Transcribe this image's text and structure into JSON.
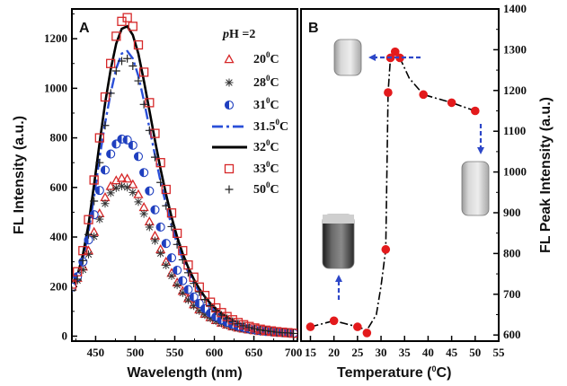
{
  "chart_data": [
    {
      "type": "scatter",
      "panel_label": "A",
      "xlabel": "Wavelength (nm)",
      "ylabel": "FL Intensity (a.u.)",
      "xlim": [
        420,
        705
      ],
      "ylim": [
        -20,
        1320
      ],
      "xticks": [
        450,
        500,
        550,
        600,
        650,
        700
      ],
      "yticks": [
        0,
        200,
        400,
        600,
        800,
        1000,
        1200
      ],
      "legend_title": "pH =2",
      "legend_position": "top-right",
      "grid": false,
      "x": [
        420,
        427,
        434,
        441,
        448,
        455,
        462,
        469,
        476,
        483,
        490,
        497,
        504,
        511,
        518,
        525,
        532,
        539,
        546,
        553,
        560,
        567,
        574,
        581,
        588,
        595,
        602,
        609,
        616,
        623,
        630,
        637,
        644,
        651,
        658,
        665,
        672,
        679,
        686,
        693,
        700
      ],
      "series": [
        {
          "name": "20 °C",
          "marker": "triangle",
          "color": "#d62728",
          "values": [
            200,
            235,
            280,
            345,
            420,
            495,
            560,
            605,
            628,
            638,
            635,
            612,
            572,
            520,
            462,
            405,
            350,
            300,
            255,
            216,
            182,
            153,
            128,
            107,
            90,
            76,
            64,
            54,
            46,
            39,
            34,
            30,
            26,
            23,
            20,
            18,
            16,
            14,
            13,
            12,
            11
          ]
        },
        {
          "name": "28 °C",
          "marker": "asterisk",
          "color": "#333333",
          "values": [
            192,
            225,
            268,
            330,
            402,
            472,
            535,
            578,
            598,
            605,
            600,
            580,
            542,
            494,
            440,
            385,
            334,
            286,
            243,
            206,
            174,
            146,
            122,
            102,
            86,
            72,
            61,
            52,
            44,
            37,
            32,
            28,
            25,
            22,
            19,
            17,
            15,
            13,
            12,
            11,
            10
          ]
        },
        {
          "name": "31 °C",
          "marker": "half-circle",
          "color": "#1f3fbf",
          "values": [
            198,
            240,
            300,
            388,
            490,
            588,
            670,
            735,
            775,
            795,
            792,
            770,
            725,
            660,
            586,
            510,
            440,
            374,
            316,
            266,
            224,
            188,
            158,
            132,
            111,
            93,
            78,
            66,
            56,
            47,
            40,
            35,
            30,
            26,
            23,
            20,
            18,
            16,
            14,
            13,
            12
          ]
        },
        {
          "name": "31.5 °C",
          "marker": "dashdot-line",
          "color": "#2a4fd8",
          "values": [
            185,
            235,
            310,
            420,
            560,
            720,
            860,
            980,
            1080,
            1140,
            1150,
            1120,
            1050,
            950,
            840,
            730,
            625,
            530,
            445,
            372,
            310,
            258,
            215,
            179,
            149,
            124,
            103,
            86,
            72,
            60,
            50,
            42,
            36,
            30,
            26,
            22,
            19,
            17,
            15,
            13,
            12
          ]
        },
        {
          "name": "32 °C",
          "marker": "solid-line",
          "color": "#000000",
          "values": [
            190,
            245,
            330,
            450,
            610,
            780,
            940,
            1075,
            1180,
            1240,
            1250,
            1215,
            1140,
            1030,
            910,
            790,
            675,
            572,
            480,
            400,
            333,
            277,
            230,
            191,
            159,
            132,
            110,
            92,
            77,
            64,
            54,
            45,
            38,
            32,
            27,
            23,
            20,
            18,
            16,
            14,
            12
          ]
        },
        {
          "name": "33 °C",
          "marker": "square",
          "color": "#d62728",
          "values": [
            210,
            260,
            345,
            470,
            630,
            800,
            965,
            1100,
            1210,
            1270,
            1285,
            1250,
            1175,
            1065,
            942,
            818,
            700,
            592,
            497,
            415,
            345,
            287,
            238,
            198,
            164,
            137,
            114,
            95,
            79,
            66,
            55,
            46,
            39,
            33,
            28,
            24,
            21,
            18,
            16,
            14,
            12
          ]
        },
        {
          "name": "50 °C",
          "marker": "plus",
          "color": "#222222",
          "values": [
            185,
            230,
            305,
            410,
            545,
            700,
            850,
            980,
            1070,
            1110,
            1120,
            1090,
            1030,
            935,
            830,
            722,
            620,
            526,
            442,
            370,
            308,
            256,
            213,
            178,
            148,
            123,
            102,
            85,
            71,
            59,
            50,
            42,
            35,
            30,
            25,
            22,
            19,
            16,
            14,
            13,
            11
          ]
        }
      ]
    },
    {
      "type": "scatter",
      "panel_label": "B",
      "xlabel": "Temperature (°C)",
      "ylabel": "FL Peak Intensity (a.u.)",
      "xlim": [
        13,
        55
      ],
      "ylim": [
        585,
        1400
      ],
      "xticks": [
        15,
        20,
        25,
        30,
        35,
        40,
        45,
        50,
        55
      ],
      "yticks": [
        600,
        700,
        800,
        900,
        1000,
        1100,
        1200,
        1300,
        1400
      ],
      "grid": false,
      "series": [
        {
          "name": "",
          "marker": "circle",
          "color": "#e31a1c",
          "points": [
            [
              15,
              620
            ],
            [
              20,
              635
            ],
            [
              25,
              620
            ],
            [
              27,
              605
            ],
            [
              31,
              810
            ],
            [
              31.5,
              1195
            ],
            [
              32,
              1280
            ],
            [
              33,
              1295
            ],
            [
              34,
              1280
            ],
            [
              39,
              1190
            ],
            [
              45,
              1170
            ],
            [
              50,
              1150
            ]
          ]
        }
      ],
      "trend_line": {
        "style": "dash-dot",
        "color": "#000000",
        "points": [
          [
            15,
            620
          ],
          [
            20,
            635
          ],
          [
            25,
            620
          ],
          [
            27,
            612
          ],
          [
            29,
            650
          ],
          [
            30,
            720
          ],
          [
            31,
            810
          ],
          [
            31.5,
            1195
          ],
          [
            32,
            1280
          ],
          [
            33,
            1298
          ],
          [
            34,
            1280
          ],
          [
            36,
            1230
          ],
          [
            39,
            1190
          ],
          [
            45,
            1170
          ],
          [
            50,
            1150
          ]
        ]
      },
      "insets": [
        {
          "name": "vial-turbid-33C",
          "tone": "light-gray",
          "points_to": [
            33,
            1300
          ]
        },
        {
          "name": "vial-turbid-50C",
          "tone": "light-gray",
          "points_to": [
            50,
            1150
          ]
        },
        {
          "name": "vial-clear-20C",
          "tone": "dark-clear",
          "points_to": [
            20,
            635
          ]
        }
      ]
    }
  ]
}
